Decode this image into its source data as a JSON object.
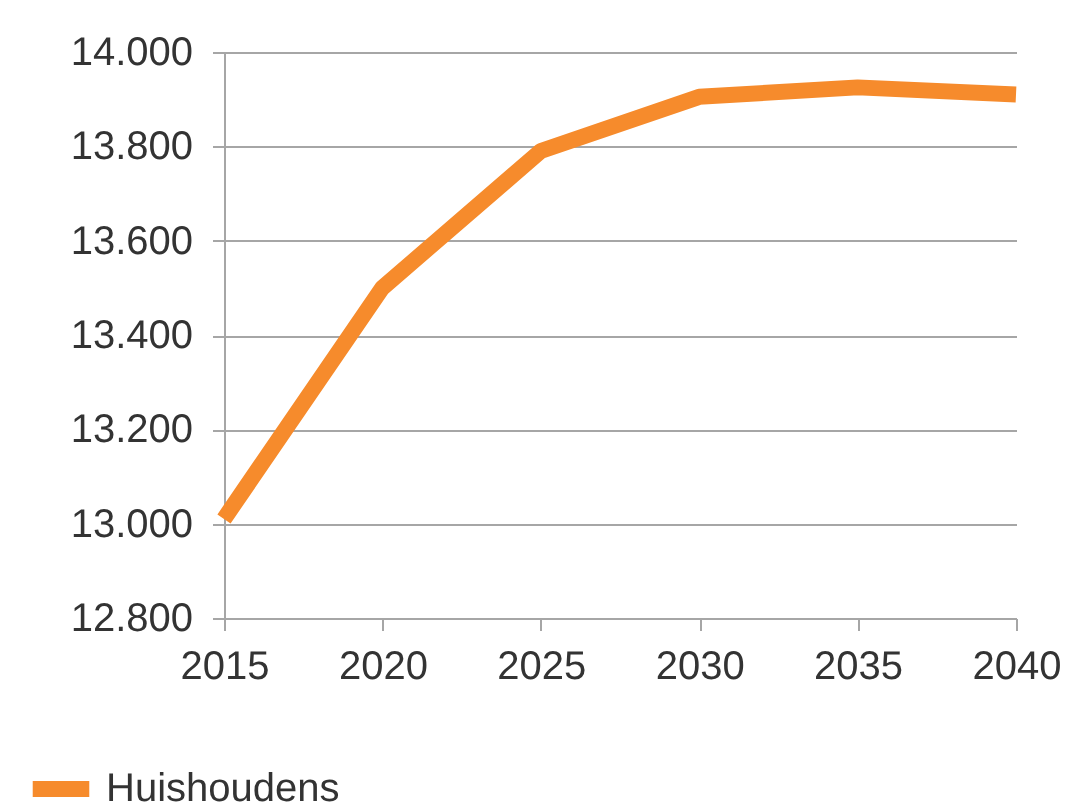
{
  "chart_data": {
    "type": "line",
    "x": [
      2015,
      2020,
      2025,
      2030,
      2035,
      2040
    ],
    "series": [
      {
        "name": "Huishoudens",
        "color": "#f68b2c",
        "values": [
          13010,
          13500,
          13790,
          13905,
          13925,
          13910
        ]
      }
    ],
    "xlim": [
      2015,
      2040
    ],
    "xticks": [
      2015,
      2020,
      2025,
      2030,
      2035,
      2040
    ],
    "ylim": [
      12800,
      14000
    ],
    "yticks": [
      {
        "value": 12800,
        "label": "12.800"
      },
      {
        "value": 13000,
        "label": "13.000"
      },
      {
        "value": 13200,
        "label": "13.200"
      },
      {
        "value": 13400,
        "label": "13.400"
      },
      {
        "value": 13600,
        "label": "13.600"
      },
      {
        "value": 13800,
        "label": "13.800"
      },
      {
        "value": 14000,
        "label": "14.000"
      }
    ],
    "grid": "y",
    "legend": "bottom left",
    "marker": "none",
    "line_style": "solid"
  }
}
